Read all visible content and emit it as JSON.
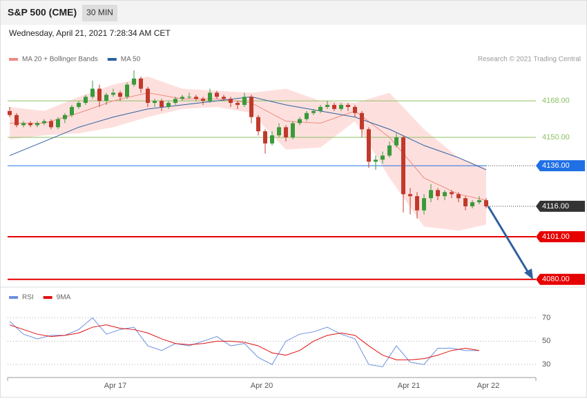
{
  "header": {
    "title": "S&P 500 (CME)",
    "timeframe": "30 MIN",
    "timestamp": "Wednesday, April 21, 2021 7:28:34 AM CET"
  },
  "chart_data": [
    {
      "type": "candlestick",
      "credit": "Research © 2021 Trading Central",
      "xlim": [
        0,
        69
      ],
      "ylim": [
        4076.5,
        4183.7
      ],
      "up_color": "#3a9a3a",
      "down_color": "#c0392b",
      "candles": [
        [
          4163,
          4165,
          4160,
          4161
        ],
        [
          4161,
          4162,
          4155,
          4156
        ],
        [
          4156,
          4158,
          4155,
          4157
        ],
        [
          4157,
          4158,
          4155,
          4156
        ],
        [
          4156,
          4158,
          4155,
          4157
        ],
        [
          4157,
          4159,
          4156,
          4158
        ],
        [
          4158,
          4159,
          4154,
          4155
        ],
        [
          4155,
          4160,
          4154,
          4159
        ],
        [
          4159,
          4162,
          4157,
          4161
        ],
        [
          4161,
          4166,
          4160,
          4165
        ],
        [
          4165,
          4168,
          4164,
          4167
        ],
        [
          4167,
          4171,
          4166,
          4170
        ],
        [
          4170,
          4178,
          4169,
          4174
        ],
        [
          4174,
          4176,
          4165,
          4168
        ],
        [
          4168,
          4172,
          4166,
          4171
        ],
        [
          4171,
          4174,
          4170,
          4172
        ],
        [
          4172,
          4173,
          4168,
          4170
        ],
        [
          4170,
          4177,
          4169,
          4176
        ],
        [
          4176,
          4183,
          4175,
          4179
        ],
        [
          4179,
          4180,
          4172,
          4174
        ],
        [
          4174,
          4175,
          4165,
          4167
        ],
        [
          4167,
          4169,
          4165,
          4168
        ],
        [
          4168,
          4169,
          4163,
          4165
        ],
        [
          4165,
          4168,
          4164,
          4167
        ],
        [
          4167,
          4170,
          4166,
          4169
        ],
        [
          4169,
          4171,
          4168,
          4170
        ],
        [
          4170,
          4172,
          4169,
          4170
        ],
        [
          4170,
          4171,
          4168,
          4169
        ],
        [
          4169,
          4170,
          4166,
          4168
        ],
        [
          4168,
          4174,
          4167,
          4172
        ],
        [
          4172,
          4173,
          4169,
          4170
        ],
        [
          4170,
          4171,
          4168,
          4169
        ],
        [
          4169,
          4170,
          4165,
          4167
        ],
        [
          4167,
          4168,
          4164,
          4166
        ],
        [
          4166,
          4172,
          4165,
          4170
        ],
        [
          4170,
          4171,
          4157,
          4160
        ],
        [
          4160,
          4161,
          4151,
          4153
        ],
        [
          4153,
          4154,
          4142,
          4147
        ],
        [
          4147,
          4153,
          4146,
          4151
        ],
        [
          4151,
          4157,
          4150,
          4155
        ],
        [
          4155,
          4156,
          4148,
          4150
        ],
        [
          4150,
          4158,
          4149,
          4157
        ],
        [
          4157,
          4160,
          4156,
          4159
        ],
        [
          4159,
          4163,
          4158,
          4162
        ],
        [
          4162,
          4164,
          4161,
          4163
        ],
        [
          4163,
          4166,
          4162,
          4165
        ],
        [
          4165,
          4168,
          4164,
          4166
        ],
        [
          4166,
          4167,
          4163,
          4164
        ],
        [
          4164,
          4167,
          4163,
          4166
        ],
        [
          4166,
          4167,
          4163,
          4165
        ],
        [
          4165,
          4166,
          4160,
          4162
        ],
        [
          4162,
          4163,
          4150,
          4154
        ],
        [
          4154,
          4155,
          4135,
          4138
        ],
        [
          4138,
          4141,
          4134,
          4139
        ],
        [
          4139,
          4143,
          4137,
          4141
        ],
        [
          4141,
          4148,
          4140,
          4146
        ],
        [
          4146,
          4152,
          4145,
          4150
        ],
        [
          4150,
          4151,
          4113,
          4122
        ],
        [
          4122,
          4125,
          4112,
          4121
        ],
        [
          4121,
          4123,
          4110,
          4114
        ],
        [
          4114,
          4122,
          4112,
          4120
        ],
        [
          4120,
          4127,
          4118,
          4124
        ],
        [
          4124,
          4125,
          4119,
          4121
        ],
        [
          4121,
          4124,
          4119,
          4123
        ],
        [
          4123,
          4124,
          4120,
          4122
        ],
        [
          4122,
          4123,
          4118,
          4120
        ],
        [
          4120,
          4121,
          4114,
          4116
        ],
        [
          4116,
          4119,
          4115,
          4118
        ],
        [
          4118,
          4121,
          4117,
          4119
        ],
        [
          4119,
          4120,
          4115,
          4116
        ]
      ],
      "series": [
        {
          "name": "MA 20 + Bollinger Bands",
          "color": "#f08a80",
          "band_color": "#fde0de",
          "x": [
            0,
            5,
            10,
            15,
            20,
            25,
            30,
            35,
            40,
            45,
            50,
            55,
            60,
            65,
            69
          ],
          "values": [
            4157,
            4157,
            4162,
            4168,
            4172,
            4169,
            4169,
            4167,
            4158,
            4157,
            4163,
            4150,
            4130,
            4122,
            4119
          ],
          "upper": [
            4165,
            4163,
            4170,
            4176,
            4180,
            4174,
            4173,
            4172,
            4174,
            4168,
            4167,
            4172,
            4154,
            4140,
            4135
          ],
          "lower": [
            4149,
            4151,
            4152,
            4155,
            4160,
            4164,
            4165,
            4162,
            4144,
            4145,
            4158,
            4130,
            4106,
            4104,
            4107
          ]
        },
        {
          "name": "MA 50",
          "color": "#2f5f9f",
          "x": [
            0,
            5,
            10,
            15,
            20,
            25,
            30,
            35,
            40,
            45,
            50,
            55,
            60,
            65,
            69
          ],
          "values": [
            4141,
            4148,
            4155,
            4160,
            4164,
            4166,
            4168,
            4170,
            4166,
            4163,
            4160,
            4154,
            4146,
            4140,
            4134
          ]
        }
      ],
      "levels": [
        {
          "value": 4168,
          "label": "4168.00",
          "color": "#8cc063",
          "style": "thin"
        },
        {
          "value": 4150,
          "label": "4150.00",
          "color": "#8cc063",
          "style": "thin"
        },
        {
          "value": 4136,
          "label": "4136.00",
          "color": "#1f6fe5",
          "style": "solid"
        },
        {
          "value": 4116,
          "label": "4116.00",
          "color": "#333333",
          "style": "dotted"
        },
        {
          "value": 4101,
          "label": "4101.00",
          "color": "#e60000",
          "style": "bold"
        },
        {
          "value": 4080,
          "label": "4080.00",
          "color": "#e60000",
          "style": "bold"
        }
      ]
    },
    {
      "type": "line",
      "xlim": [
        0,
        69
      ],
      "ylim": [
        20,
        94
      ],
      "yticks": [
        30,
        50,
        70
      ],
      "xticks": [
        {
          "value": 15.3,
          "label": "Apr 17"
        },
        {
          "value": 36.5,
          "label": "Apr 20"
        },
        {
          "value": 57.8,
          "label": "Apr 21"
        },
        {
          "value": 69.3,
          "label": "Apr 22"
        }
      ],
      "x": [
        0,
        2,
        4,
        6,
        8,
        10,
        12,
        14,
        16,
        18,
        20,
        22,
        24,
        26,
        28,
        30,
        32,
        34,
        36,
        38,
        40,
        42,
        44,
        46,
        48,
        50,
        52,
        54,
        56,
        58,
        60,
        62,
        64,
        66,
        68
      ],
      "series": [
        {
          "name": "RSI",
          "color": "#6b8fe0",
          "values": [
            67,
            56,
            52,
            55,
            55,
            60,
            70,
            56,
            60,
            62,
            46,
            42,
            48,
            46,
            50,
            54,
            46,
            48,
            36,
            30,
            50,
            56,
            58,
            62,
            56,
            52,
            30,
            28,
            46,
            32,
            30,
            44,
            44,
            42,
            42
          ]
        },
        {
          "name": "9MA",
          "color": "#e01010",
          "values": [
            64,
            60,
            56,
            54,
            55,
            57,
            62,
            64,
            61,
            60,
            57,
            52,
            48,
            47,
            48,
            50,
            50,
            49,
            46,
            40,
            38,
            42,
            50,
            55,
            57,
            55,
            46,
            38,
            34,
            34,
            35,
            38,
            42,
            44,
            42
          ]
        }
      ]
    }
  ]
}
